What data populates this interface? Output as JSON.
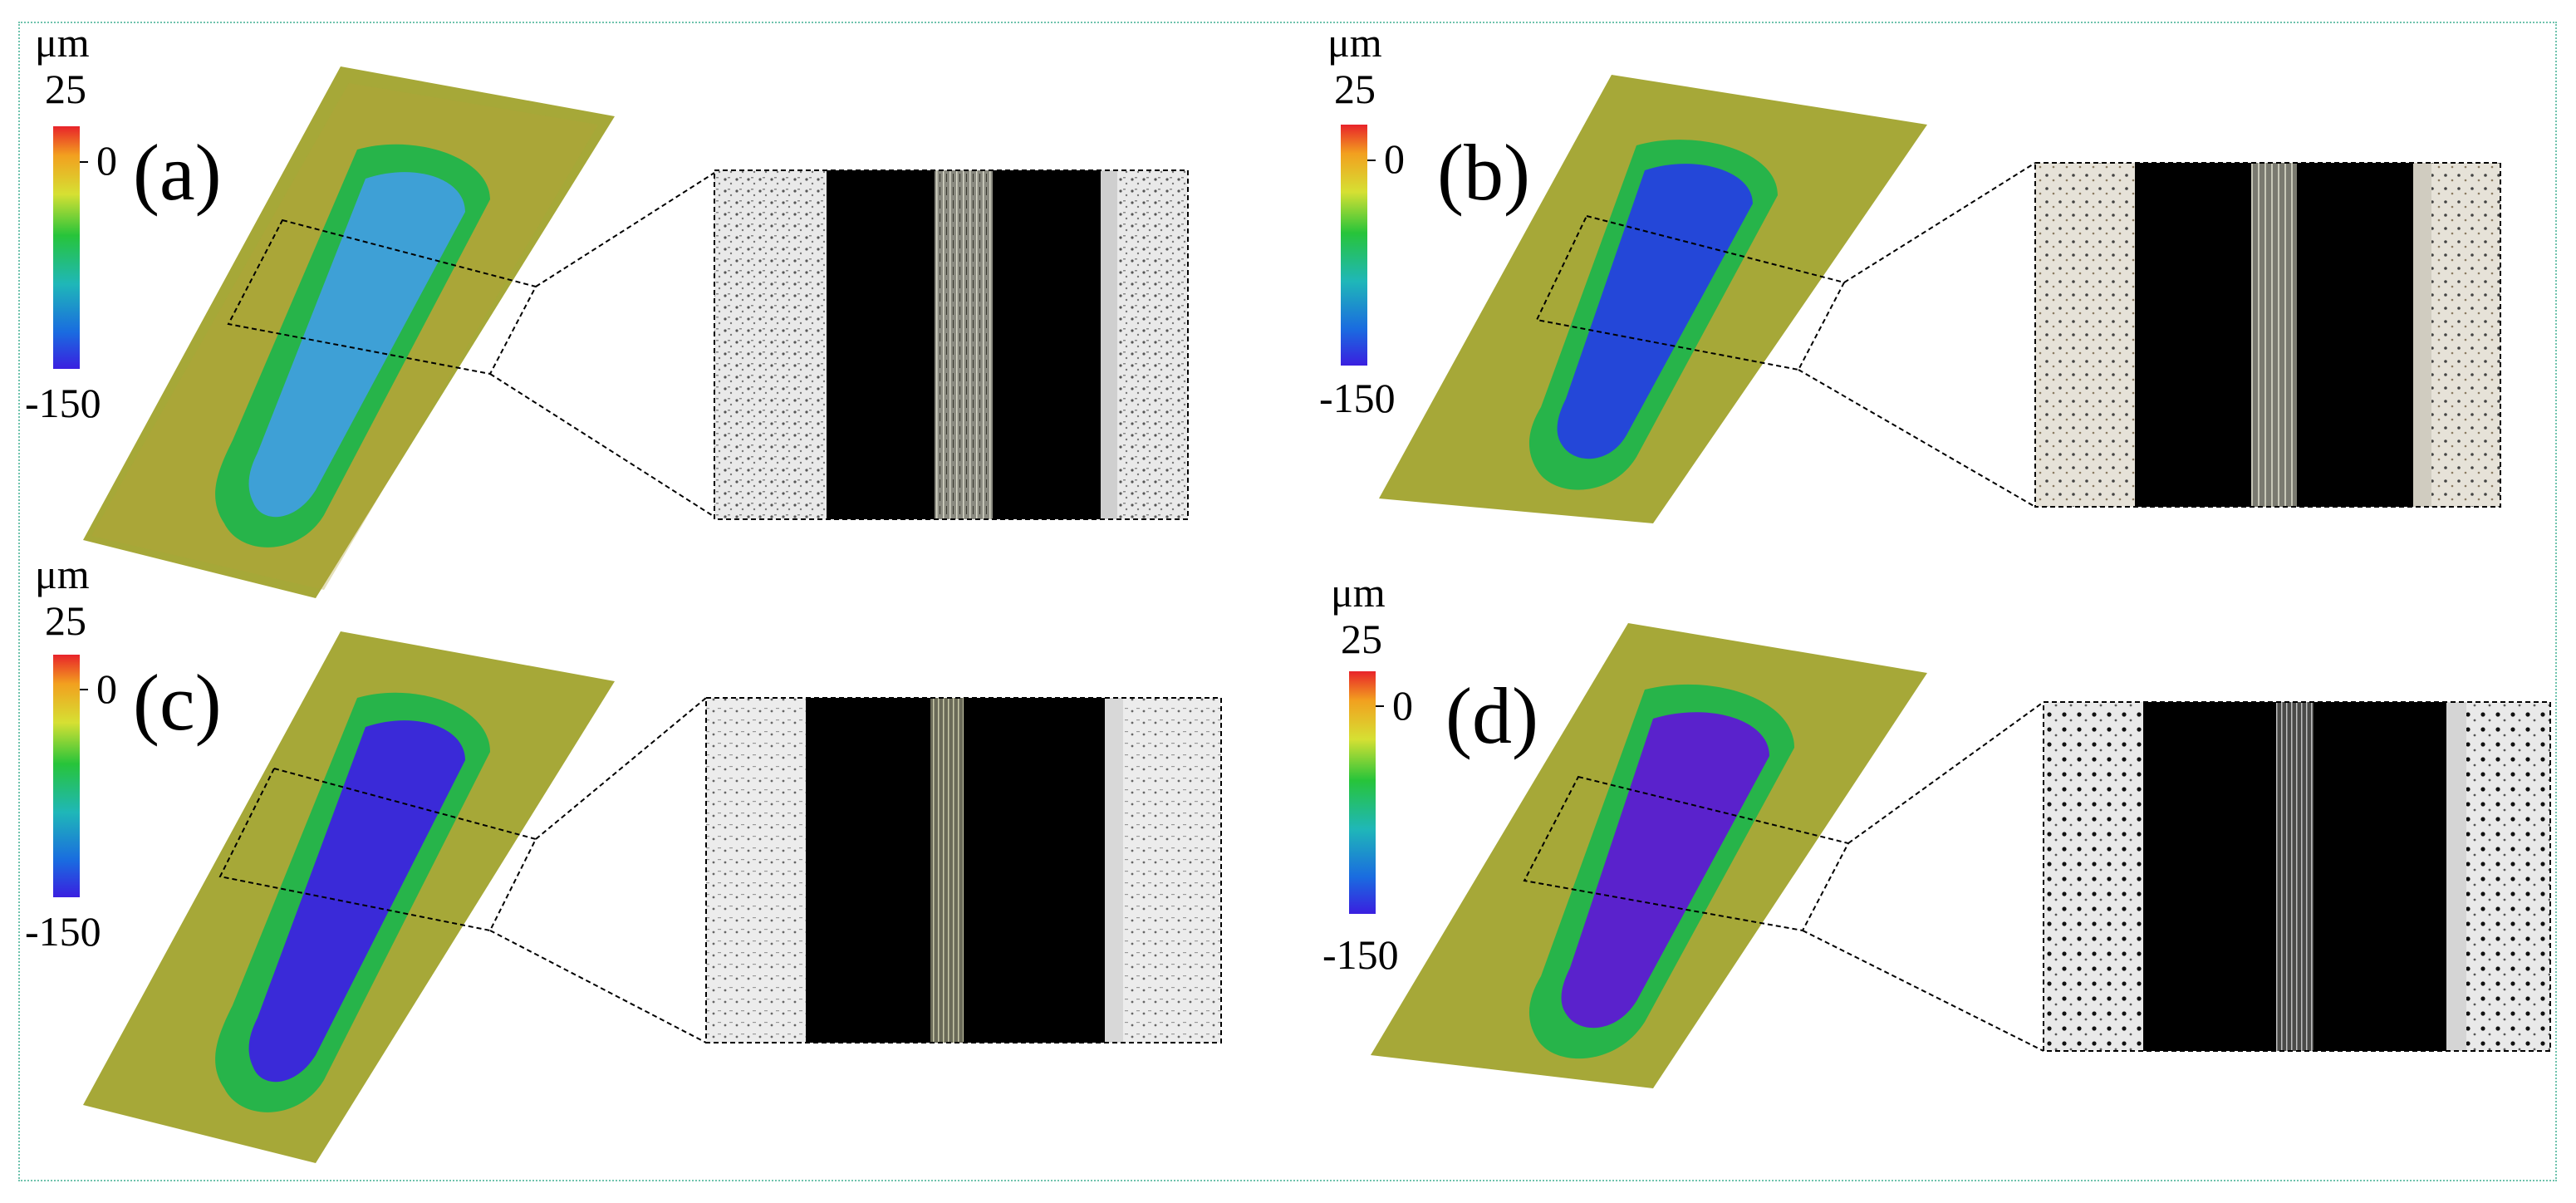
{
  "figure": {
    "colorbar": {
      "unit": "μm",
      "max_label": "25",
      "zero_label": "0",
      "min_label": "-150",
      "colors": [
        "#e8232a",
        "#f2a01f",
        "#d6e033",
        "#27c43a",
        "#1fb7b8",
        "#1a6be0",
        "#3a1fe0"
      ]
    },
    "panels": [
      {
        "id": "a",
        "label": "(a)",
        "depth_color": "#3ea0d6",
        "rim_color": "#27b44a"
      },
      {
        "id": "b",
        "label": "(b)",
        "depth_color": "#2447d8",
        "rim_color": "#27b44a"
      },
      {
        "id": "c",
        "label": "(c)",
        "depth_color": "#3a2ad8",
        "rim_color": "#27b44a"
      },
      {
        "id": "d",
        "label": "(d)",
        "depth_color": "#5a22cc",
        "rim_color": "#27b44a"
      }
    ],
    "frame_color": "#6fc3ad",
    "surface_color": "#a6a838"
  }
}
